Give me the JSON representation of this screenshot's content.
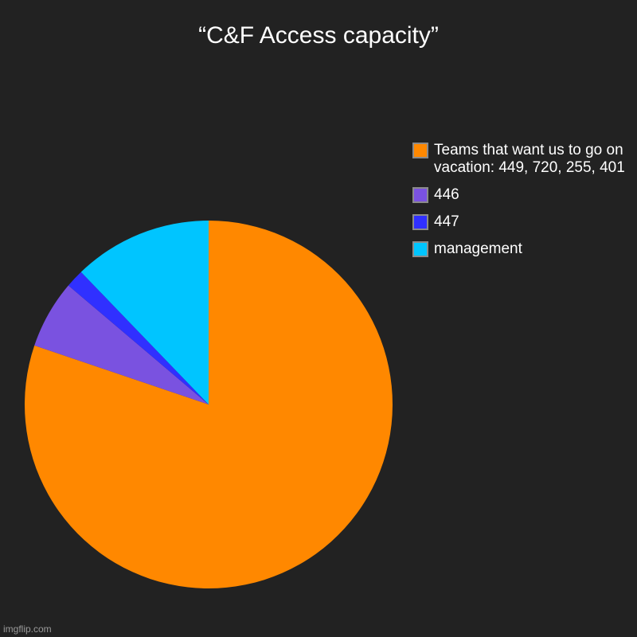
{
  "chart_data": {
    "type": "pie",
    "title": "“C&F Access capacity”",
    "slices": [
      {
        "label": "Teams that want us to go on vacation: 449, 720, 255, 401",
        "value": 80.2,
        "color": "#ff8800"
      },
      {
        "label": "446",
        "value": 6.0,
        "color": "#7a52e0"
      },
      {
        "label": "447",
        "value": 1.6,
        "color": "#3030ff"
      },
      {
        "label": "management",
        "value": 12.2,
        "color": "#00c5ff"
      }
    ],
    "legend_position": "top-right"
  },
  "background_color": "#222222",
  "watermark": "imgflip.com"
}
